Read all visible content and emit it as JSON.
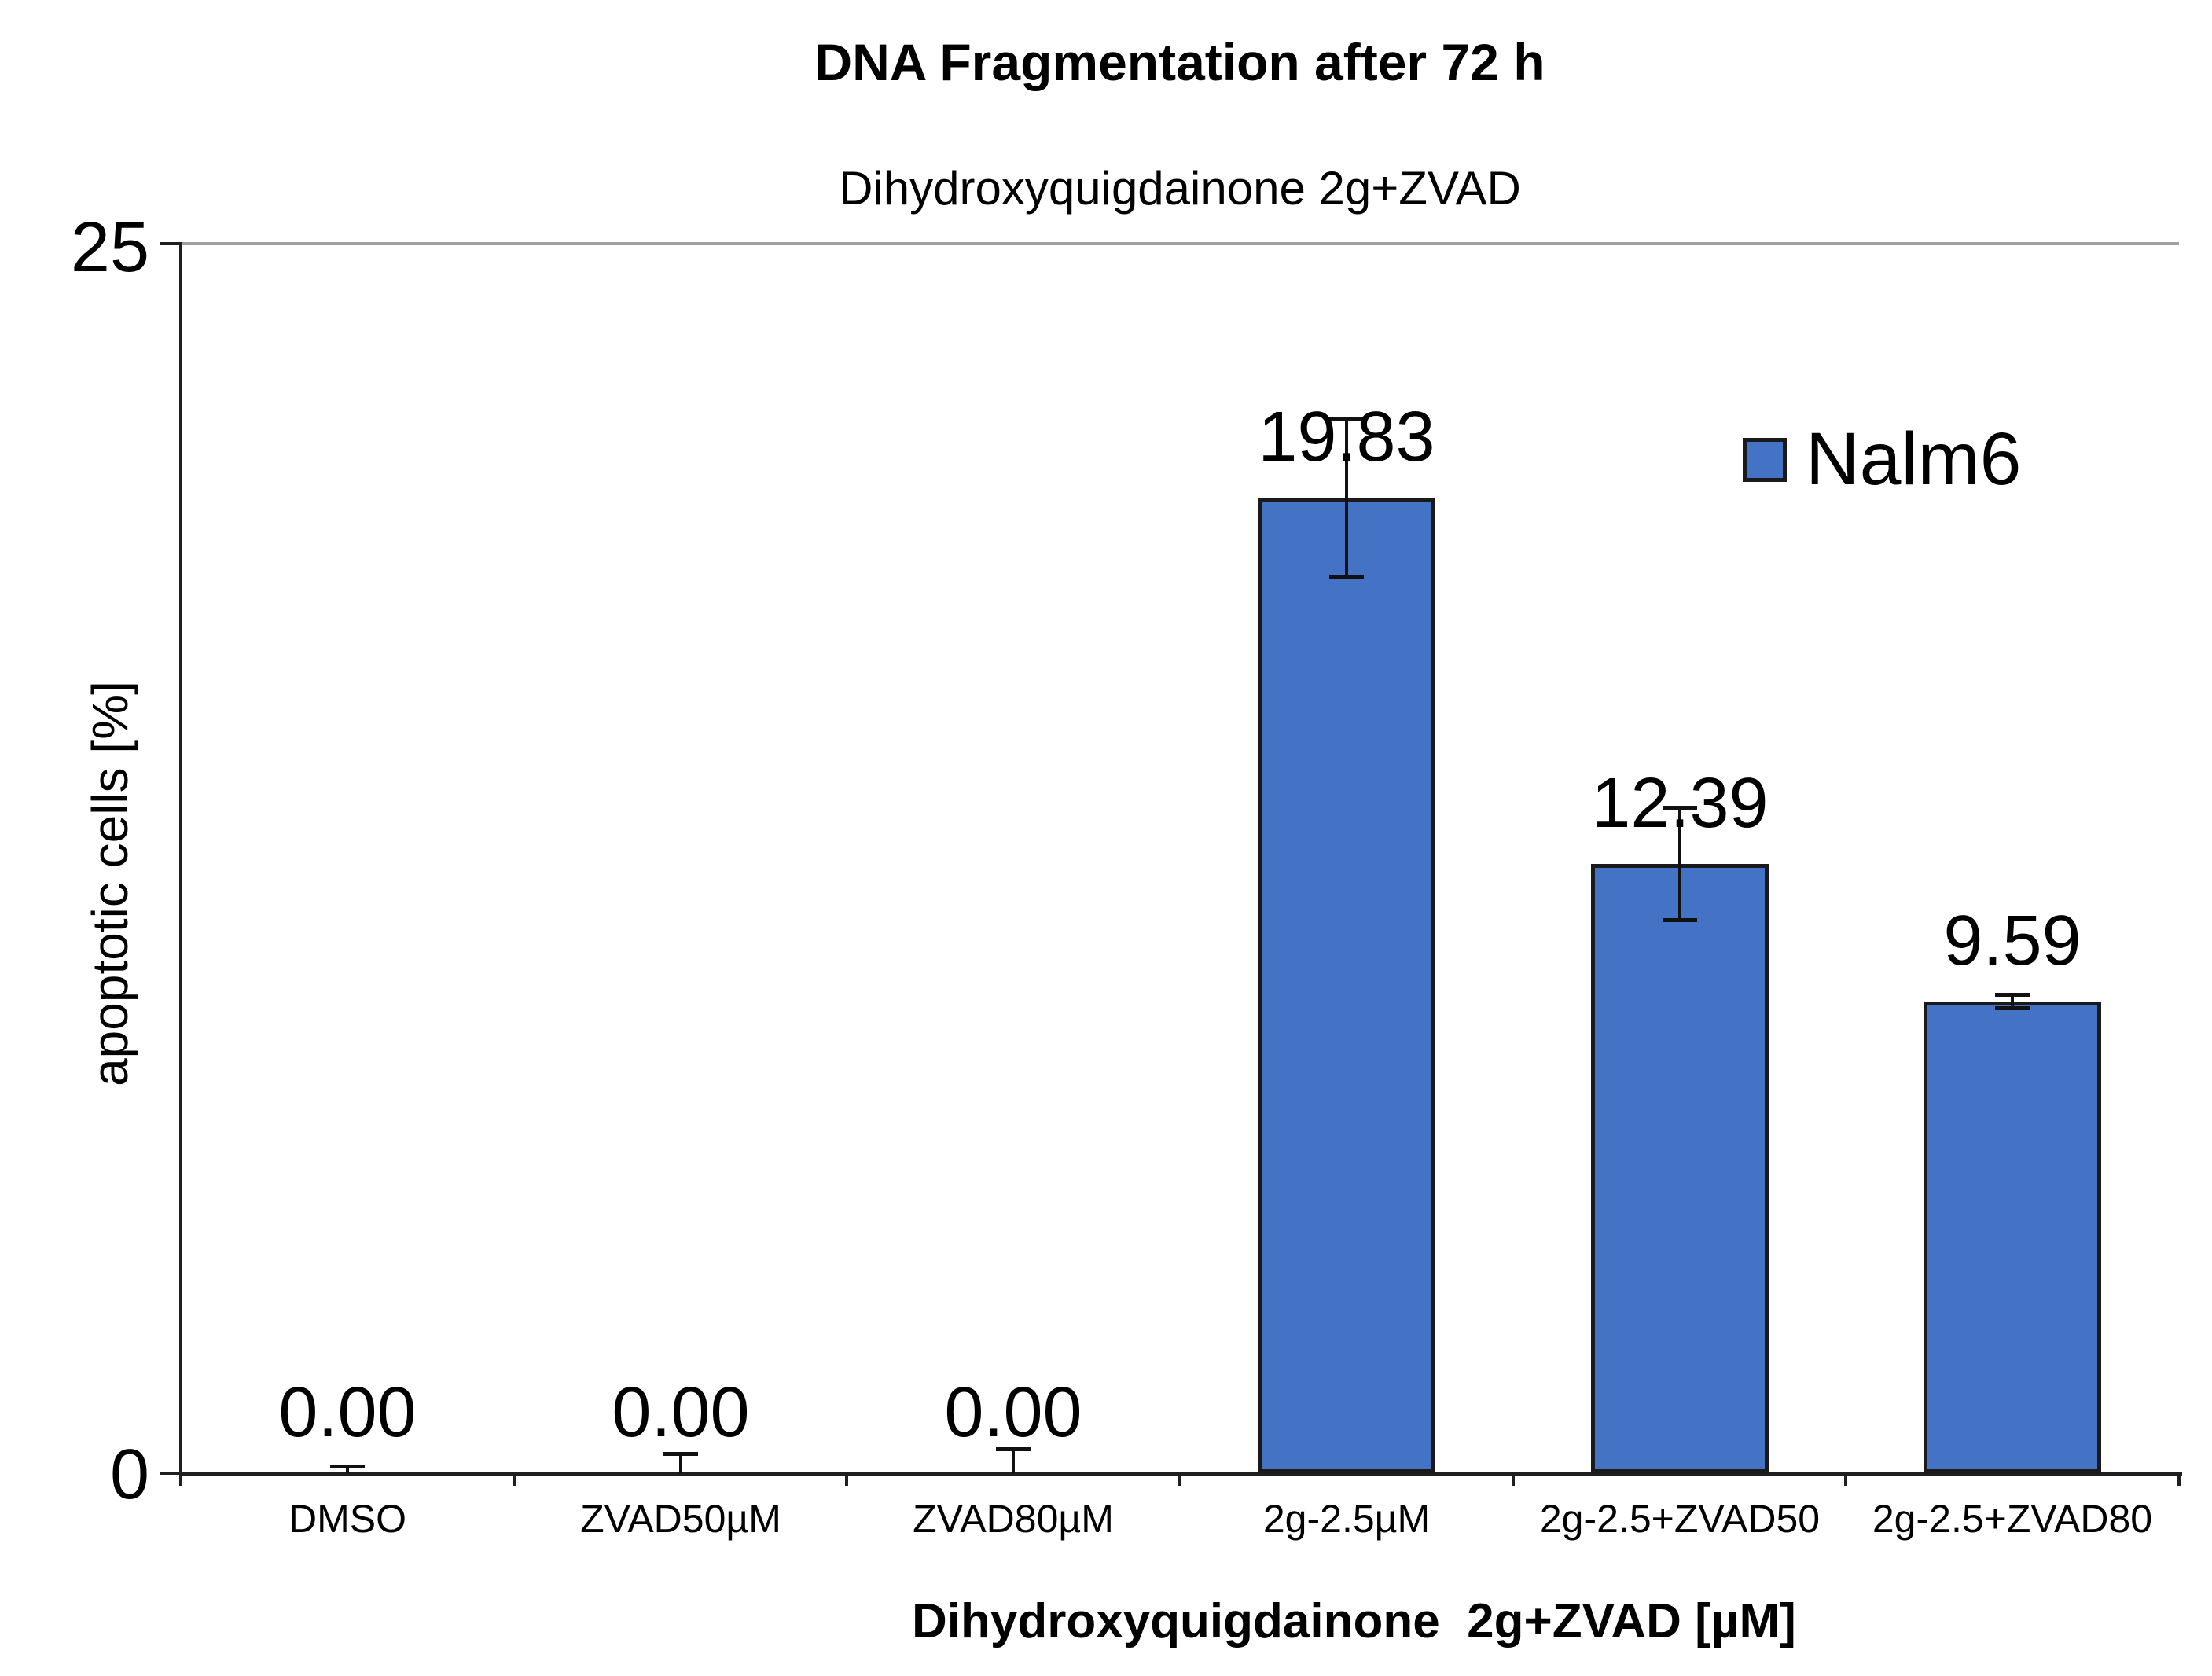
{
  "chart_data": {
    "type": "bar",
    "title": "DNA Fragmentation after 72 h",
    "subtitle": "Dihydroxyquigdainone 2g+ZVAD",
    "xlabel": "Dihydroxyquigdainone  2g+ZVAD [µM]",
    "ylabel": "apoptotic cells [%]",
    "ylim": [
      0,
      25
    ],
    "ytick_labels": {
      "max": "25",
      "min": "0"
    },
    "grid": "single horizontal gridline at y=25 only",
    "legend_position": "upper-right inside plot",
    "categories": [
      "DMSO",
      "ZVAD50µM",
      "ZVAD80µM",
      "2g-2.5µM",
      "2g-2.5+ZVAD50",
      "2g-2.5+ZVAD80"
    ],
    "series": [
      {
        "name": "Nalm6",
        "values": [
          0.0,
          0.0,
          0.0,
          19.83,
          12.39,
          9.59
        ],
        "errors": [
          0.15,
          0.4,
          0.5,
          1.6,
          1.15,
          0.15
        ],
        "value_labels": [
          "0.00",
          "0.00",
          "0.00",
          "19.83",
          "12.39",
          "9.59"
        ]
      }
    ],
    "bar_fill_color": "#4472C4",
    "bar_border_color": "#1a1a1a",
    "gridline_color": "#a0a0a0",
    "axis_color": "#1f1f1f"
  }
}
